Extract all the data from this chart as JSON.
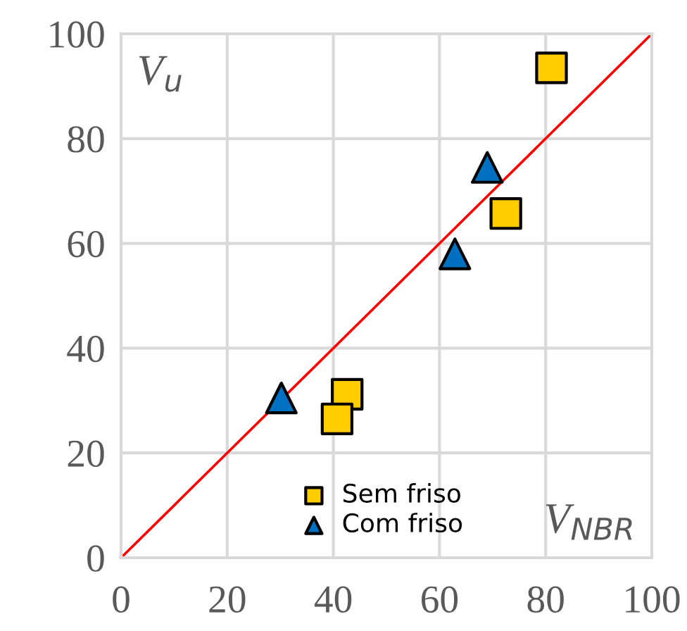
{
  "chart_data": {
    "type": "scatter",
    "series": [
      {
        "name": "Sem friso",
        "color": "#ffcc00",
        "marker": "square",
        "x": [
          81.1,
          72.5,
          42.6,
          40.7
        ],
        "values": [
          93.5,
          65.7,
          31.2,
          26.5
        ]
      },
      {
        "name": "Com friso",
        "color": "#0070c0",
        "marker": "triangle",
        "x": [
          69.0,
          62.9,
          30.2
        ],
        "values": [
          74.5,
          58.0,
          30.5
        ]
      },
      {
        "type": "line",
        "color": "#ff0000",
        "x": [
          0,
          100
        ],
        "values": [
          0,
          100
        ]
      }
    ],
    "annotations": [
      "V$_{u}$",
      "V$_{NBR}$"
    ],
    "xlim": [
      0,
      100
    ],
    "ylim": [
      0,
      100
    ],
    "xticks": [
      0,
      20,
      40,
      60,
      80,
      100
    ],
    "yticks": [
      0,
      20,
      40,
      60,
      80,
      100
    ],
    "grid": true,
    "legend": "bottom"
  }
}
